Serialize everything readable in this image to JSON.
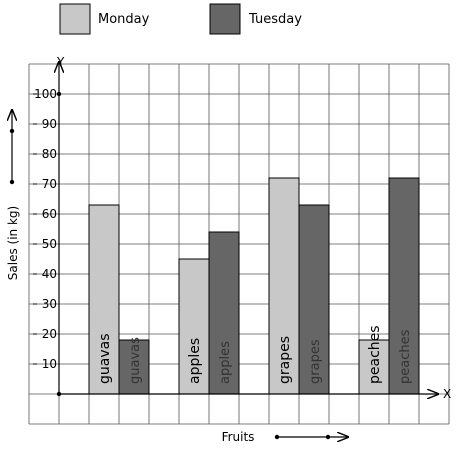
{
  "chart_data": {
    "type": "bar",
    "categories": [
      "guavas",
      "apples",
      "grapes",
      "peaches"
    ],
    "series": [
      {
        "name": "Monday",
        "values": [
          63,
          45,
          72,
          18
        ],
        "color": "#c8c8c8"
      },
      {
        "name": "Tuesday",
        "values": [
          18,
          54,
          63,
          72
        ],
        "color": "#666666"
      }
    ],
    "title": "",
    "xlabel": "Fruits",
    "ylabel": "Sales (in kg)",
    "y_axis_name": "Y",
    "x_axis_name": "X",
    "ylim": [
      0,
      110
    ],
    "yticks": [
      10,
      20,
      30,
      40,
      50,
      60,
      70,
      80,
      90,
      100
    ],
    "grid": true,
    "legend_position": "top"
  }
}
